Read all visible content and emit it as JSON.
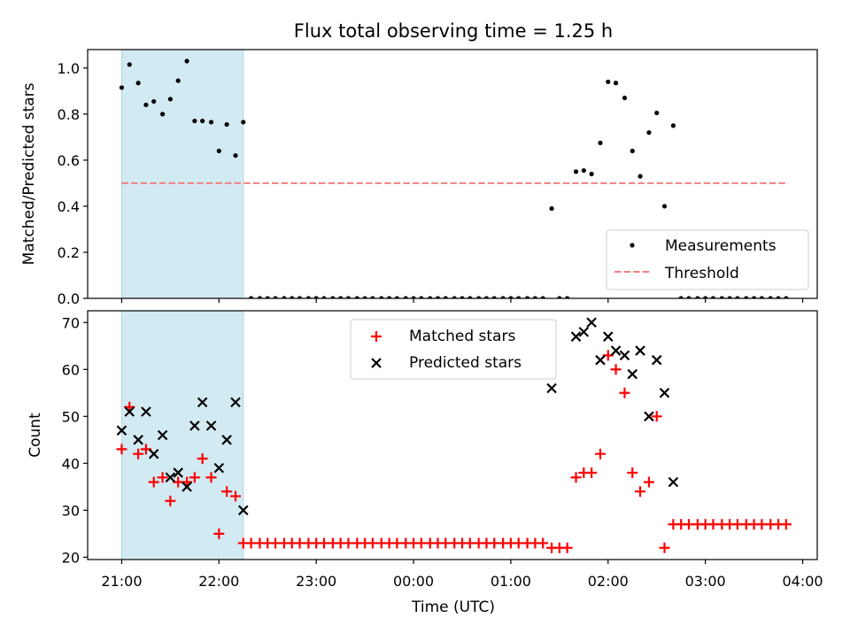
{
  "chart_data": {
    "title": "Flux total observing time = 1.25 h",
    "xlabel": "Time (UTC)",
    "x_unit": "hours since 21:00 UTC",
    "xlim": [
      -0.35,
      7.15
    ],
    "x_ticks": [
      {
        "value": 0,
        "label": "21:00"
      },
      {
        "value": 1,
        "label": "22:00"
      },
      {
        "value": 2,
        "label": "23:00"
      },
      {
        "value": 3,
        "label": "00:00"
      },
      {
        "value": 4,
        "label": "01:00"
      },
      {
        "value": 5,
        "label": "02:00"
      },
      {
        "value": 6,
        "label": "03:00"
      },
      {
        "value": 7,
        "label": "04:00"
      }
    ],
    "shaded_span": {
      "start": 0.0,
      "end": 1.25
    },
    "panels": [
      {
        "name": "ratio",
        "type": "scatter",
        "ylabel": "Matched/Predicted stars",
        "ylim": [
          0,
          1.08
        ],
        "yticks": [
          "0.0",
          "0.2",
          "0.4",
          "0.6",
          "0.8",
          "1.0"
        ],
        "legend": {
          "position": "lower-right",
          "entries": [
            "Measurements",
            "Threshold"
          ]
        },
        "threshold": {
          "name": "Threshold",
          "value": 0.5,
          "x_start": 0.0,
          "x_end": 6.83,
          "color": "#f08080"
        },
        "measurements": {
          "name": "Measurements",
          "color": "#000000",
          "x": [
            0.0,
            0.08,
            0.17,
            0.25,
            0.33,
            0.42,
            0.5,
            0.58,
            0.67,
            0.75,
            0.83,
            0.92,
            1.0,
            1.08,
            1.17,
            1.25,
            1.33,
            1.42,
            1.5,
            1.58,
            1.67,
            1.75,
            1.83,
            1.92,
            2.0,
            2.08,
            2.17,
            2.25,
            2.33,
            2.42,
            2.5,
            2.58,
            2.67,
            2.75,
            2.83,
            2.92,
            3.0,
            3.08,
            3.17,
            3.25,
            3.33,
            3.42,
            3.5,
            3.58,
            3.67,
            3.75,
            3.83,
            3.92,
            4.0,
            4.08,
            4.17,
            4.25,
            4.33,
            4.42,
            4.5,
            4.58,
            4.67,
            4.75,
            4.83,
            4.92,
            5.0,
            5.08,
            5.17,
            5.25,
            5.33,
            5.42,
            5.5,
            5.58,
            5.67,
            5.75,
            5.83,
            5.92,
            6.0,
            6.08,
            6.17,
            6.25,
            6.33,
            6.42,
            6.5,
            6.58,
            6.67,
            6.75,
            6.83
          ],
          "y": [
            0.915,
            1.015,
            0.935,
            0.84,
            0.855,
            0.8,
            0.865,
            0.945,
            1.03,
            0.77,
            0.77,
            0.765,
            0.64,
            0.755,
            0.62,
            0.765,
            0,
            0,
            0,
            0,
            0,
            0,
            0,
            0,
            0,
            0,
            0,
            0,
            0,
            0,
            0,
            0,
            0,
            0,
            0,
            0,
            0,
            0,
            0,
            0,
            0,
            0,
            0,
            0,
            0,
            0,
            0,
            0,
            0,
            0,
            0,
            0,
            0,
            0.39,
            0,
            0,
            0.55,
            0.555,
            0.54,
            0.675,
            0.94,
            0.935,
            0.87,
            0.64,
            0.53,
            0.72,
            0.805,
            0.4,
            0.75,
            0,
            0,
            0,
            0,
            0,
            0,
            0,
            0,
            0,
            0,
            0,
            0,
            0,
            0
          ]
        }
      },
      {
        "name": "counts",
        "type": "scatter",
        "ylabel": "Count",
        "ylim": [
          19.5,
          72.5
        ],
        "yticks": [
          "20",
          "30",
          "40",
          "50",
          "60",
          "70"
        ],
        "legend": {
          "position": "upper-center",
          "entries": [
            "Matched stars",
            "Predicted stars"
          ]
        },
        "series": [
          {
            "name": "Matched stars",
            "marker": "plus",
            "color": "#ff0000",
            "x": [
              0.0,
              0.08,
              0.17,
              0.25,
              0.33,
              0.42,
              0.5,
              0.58,
              0.67,
              0.75,
              0.83,
              0.92,
              1.0,
              1.08,
              1.17,
              1.25,
              1.33,
              1.42,
              1.5,
              1.58,
              1.67,
              1.75,
              1.83,
              1.92,
              2.0,
              2.08,
              2.17,
              2.25,
              2.33,
              2.42,
              2.5,
              2.58,
              2.67,
              2.75,
              2.83,
              2.92,
              3.0,
              3.08,
              3.17,
              3.25,
              3.33,
              3.42,
              3.5,
              3.58,
              3.67,
              3.75,
              3.83,
              3.92,
              4.0,
              4.08,
              4.17,
              4.25,
              4.33,
              4.42,
              4.5,
              4.58,
              4.67,
              4.75,
              4.83,
              4.92,
              5.0,
              5.08,
              5.17,
              5.25,
              5.33,
              5.42,
              5.5,
              5.58,
              5.67,
              5.75,
              5.83,
              5.92,
              6.0,
              6.08,
              6.17,
              6.25,
              6.33,
              6.42,
              6.5,
              6.58,
              6.67,
              6.75,
              6.83
            ],
            "y": [
              43,
              52,
              42,
              43,
              36,
              37,
              32,
              36,
              36,
              37,
              41,
              37,
              25,
              34,
              33,
              23,
              23,
              23,
              23,
              23,
              23,
              23,
              23,
              23,
              23,
              23,
              23,
              23,
              23,
              23,
              23,
              23,
              23,
              23,
              23,
              23,
              23,
              23,
              23,
              23,
              23,
              23,
              23,
              23,
              23,
              23,
              23,
              23,
              23,
              23,
              23,
              23,
              23,
              22,
              22,
              22,
              37,
              38,
              38,
              42,
              63,
              60,
              55,
              38,
              34,
              36,
              50,
              22,
              27,
              27,
              27,
              27,
              27,
              27,
              27,
              27,
              27,
              27,
              27,
              27,
              27,
              27,
              27
            ]
          },
          {
            "name": "Predicted stars",
            "marker": "x",
            "color": "#000000",
            "x": [
              0.0,
              0.08,
              0.25,
              0.33,
              0.42,
              0.5,
              0.58,
              0.67,
              0.75,
              0.83,
              0.92,
              1.0,
              1.08,
              1.17,
              1.25,
              4.42,
              4.67,
              4.75,
              4.83,
              4.92,
              5.0,
              5.08,
              5.17,
              5.25,
              5.33,
              5.42,
              5.5,
              5.58,
              5.67
            ],
            "y": [
              47,
              51,
              51,
              42,
              46,
              37,
              38,
              35,
              48,
              53,
              48,
              39,
              45,
              53,
              30,
              56,
              67,
              68,
              70,
              62,
              67,
              64,
              63,
              59,
              64,
              50,
              62,
              55,
              36
            ],
            "extra_points": [
              {
                "x": 0.17,
                "y": 45
              }
            ]
          }
        ]
      }
    ]
  }
}
